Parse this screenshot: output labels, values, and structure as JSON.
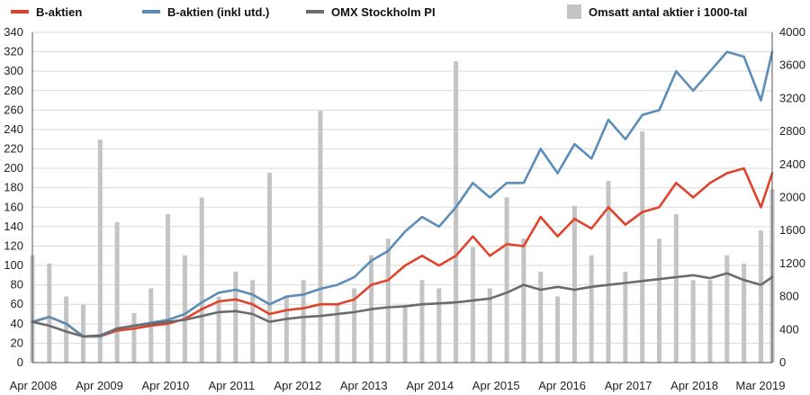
{
  "chart_data": {
    "type": "line",
    "legend": [
      {
        "name": "B-aktien",
        "color": "#e0432b",
        "kind": "line"
      },
      {
        "name": "B-aktien (inkl utd.)",
        "color": "#5b8db8",
        "kind": "line"
      },
      {
        "name": "OMX Stockholm PI",
        "color": "#6b6b6b",
        "kind": "line"
      },
      {
        "name": "Omsatt antal aktier i 1000-tal",
        "color": "#c4c4c4",
        "kind": "bar"
      }
    ],
    "legend_position": "top",
    "x_labels": [
      "Apr 2008",
      "Apr 2009",
      "Apr 2010",
      "Apr 2011",
      "Apr 2012",
      "Apr 2013",
      "Apr 2014",
      "Apr 2015",
      "Apr 2016",
      "Apr 2017",
      "Apr 2018",
      "Mar 2019"
    ],
    "x_range": [
      "2008-04",
      "2019-03"
    ],
    "y_left": {
      "range": [
        0,
        340
      ],
      "ticks": [
        0,
        20,
        40,
        60,
        80,
        100,
        120,
        140,
        160,
        180,
        200,
        220,
        240,
        260,
        280,
        300,
        320,
        340
      ]
    },
    "y_right": {
      "range": [
        0,
        4000
      ],
      "ticks": [
        0,
        400,
        800,
        1200,
        1600,
        2000,
        2400,
        2800,
        3200,
        3600,
        4000
      ]
    },
    "grid": "horizontal",
    "series": [
      {
        "name": "B-aktien",
        "axis": "left",
        "x": [
          "2008-04",
          "2008-07",
          "2008-10",
          "2009-01",
          "2009-04",
          "2009-07",
          "2009-10",
          "2010-01",
          "2010-04",
          "2010-07",
          "2010-10",
          "2011-01",
          "2011-04",
          "2011-07",
          "2011-10",
          "2012-01",
          "2012-04",
          "2012-07",
          "2012-10",
          "2013-01",
          "2013-04",
          "2013-07",
          "2013-10",
          "2014-01",
          "2014-04",
          "2014-07",
          "2014-10",
          "2015-01",
          "2015-04",
          "2015-07",
          "2015-10",
          "2016-01",
          "2016-04",
          "2016-07",
          "2016-10",
          "2017-01",
          "2017-04",
          "2017-07",
          "2017-10",
          "2018-01",
          "2018-04",
          "2018-07",
          "2018-10",
          "2019-01",
          "2019-03"
        ],
        "values": [
          42,
          47,
          40,
          27,
          27,
          33,
          35,
          38,
          40,
          45,
          55,
          63,
          65,
          60,
          50,
          54,
          56,
          60,
          60,
          65,
          80,
          85,
          100,
          110,
          100,
          110,
          130,
          110,
          122,
          120,
          150,
          130,
          148,
          138,
          160,
          142,
          155,
          160,
          185,
          170,
          185,
          195,
          200,
          160,
          195
        ]
      },
      {
        "name": "B-aktien (inkl utd.)",
        "axis": "left",
        "x": [
          "2008-04",
          "2008-07",
          "2008-10",
          "2009-01",
          "2009-04",
          "2009-07",
          "2009-10",
          "2010-01",
          "2010-04",
          "2010-07",
          "2010-10",
          "2011-01",
          "2011-04",
          "2011-07",
          "2011-10",
          "2012-01",
          "2012-04",
          "2012-07",
          "2012-10",
          "2013-01",
          "2013-04",
          "2013-07",
          "2013-10",
          "2014-01",
          "2014-04",
          "2014-07",
          "2014-10",
          "2015-01",
          "2015-04",
          "2015-07",
          "2015-10",
          "2016-01",
          "2016-04",
          "2016-07",
          "2016-10",
          "2017-01",
          "2017-04",
          "2017-07",
          "2017-10",
          "2018-01",
          "2018-04",
          "2018-07",
          "2018-10",
          "2019-01",
          "2019-03"
        ],
        "values": [
          42,
          47,
          40,
          27,
          27,
          35,
          38,
          41,
          44,
          50,
          62,
          72,
          75,
          70,
          60,
          68,
          70,
          76,
          80,
          88,
          105,
          115,
          135,
          150,
          140,
          160,
          185,
          170,
          185,
          185,
          220,
          195,
          225,
          210,
          250,
          230,
          255,
          260,
          300,
          280,
          300,
          320,
          315,
          270,
          320
        ]
      },
      {
        "name": "OMX Stockholm PI",
        "axis": "left",
        "x": [
          "2008-04",
          "2008-07",
          "2008-10",
          "2009-01",
          "2009-04",
          "2009-07",
          "2009-10",
          "2010-01",
          "2010-04",
          "2010-07",
          "2010-10",
          "2011-01",
          "2011-04",
          "2011-07",
          "2011-10",
          "2012-01",
          "2012-04",
          "2012-07",
          "2012-10",
          "2013-01",
          "2013-04",
          "2013-07",
          "2013-10",
          "2014-01",
          "2014-04",
          "2014-07",
          "2014-10",
          "2015-01",
          "2015-04",
          "2015-07",
          "2015-10",
          "2016-01",
          "2016-04",
          "2016-07",
          "2016-10",
          "2017-01",
          "2017-04",
          "2017-07",
          "2017-10",
          "2018-01",
          "2018-04",
          "2018-07",
          "2018-10",
          "2019-01",
          "2019-03"
        ],
        "values": [
          42,
          38,
          32,
          27,
          28,
          35,
          38,
          40,
          42,
          44,
          48,
          52,
          53,
          50,
          42,
          45,
          47,
          48,
          50,
          52,
          55,
          57,
          58,
          60,
          61,
          62,
          64,
          66,
          72,
          80,
          75,
          78,
          75,
          78,
          80,
          82,
          84,
          86,
          88,
          90,
          87,
          92,
          85,
          80,
          88
        ]
      },
      {
        "name": "Omsatt antal aktier i 1000-tal",
        "axis": "right",
        "x": [
          "2008-04",
          "2008-07",
          "2008-10",
          "2009-01",
          "2009-04",
          "2009-07",
          "2009-10",
          "2010-01",
          "2010-04",
          "2010-07",
          "2010-10",
          "2011-01",
          "2011-04",
          "2011-07",
          "2011-10",
          "2012-01",
          "2012-04",
          "2012-07",
          "2012-10",
          "2013-01",
          "2013-04",
          "2013-07",
          "2013-10",
          "2014-01",
          "2014-04",
          "2014-07",
          "2014-10",
          "2015-01",
          "2015-04",
          "2015-07",
          "2015-10",
          "2016-01",
          "2016-04",
          "2016-07",
          "2016-10",
          "2017-01",
          "2017-04",
          "2017-07",
          "2017-10",
          "2018-01",
          "2018-04",
          "2018-07",
          "2018-10",
          "2019-01",
          "2019-03"
        ],
        "values": [
          1300,
          1200,
          800,
          700,
          2700,
          1700,
          600,
          900,
          1800,
          1300,
          2000,
          800,
          1100,
          1000,
          2300,
          800,
          1000,
          3050,
          700,
          900,
          1300,
          1500,
          700,
          1000,
          900,
          3650,
          1400,
          900,
          2000,
          1500,
          1100,
          800,
          1900,
          1300,
          2200,
          1100,
          2800,
          1500,
          1800,
          1000,
          1000,
          1300,
          1200,
          1600,
          2100
        ]
      }
    ]
  }
}
